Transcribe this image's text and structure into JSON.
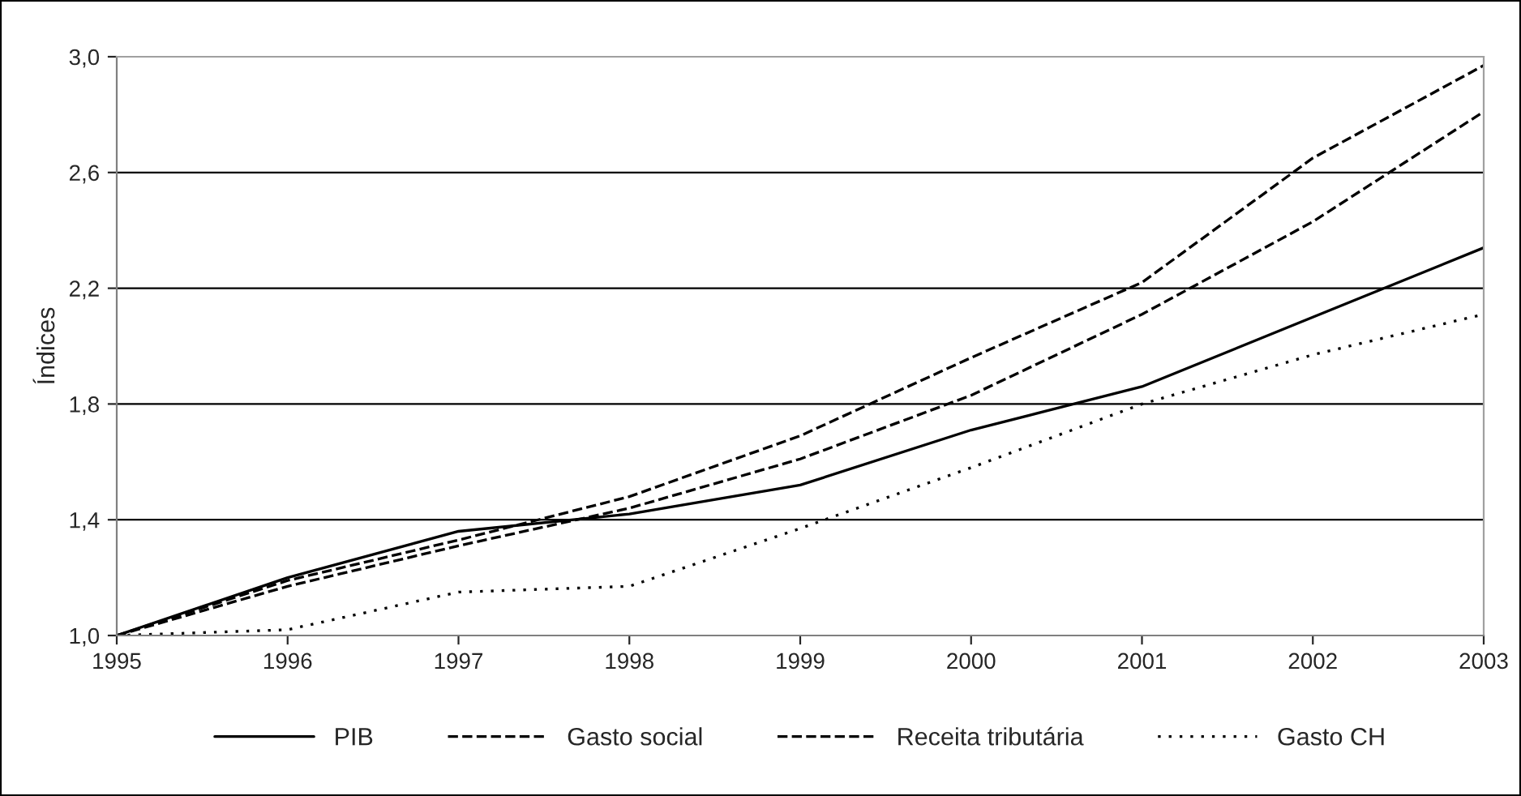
{
  "chart_data": {
    "type": "line",
    "ylabel": "Índices",
    "categories": [
      "1995",
      "1996",
      "1997",
      "1998",
      "1999",
      "2000",
      "2001",
      "2002",
      "2003"
    ],
    "series": [
      {
        "name": "PIB",
        "color": "#000000",
        "line_style": "solid",
        "values": [
          1.0,
          1.2,
          1.36,
          1.42,
          1.52,
          1.71,
          1.86,
          2.1,
          2.34
        ]
      },
      {
        "name": "Gasto social",
        "color": "#000000",
        "line_style": "dashed",
        "values": [
          1.0,
          1.19,
          1.33,
          1.48,
          1.69,
          1.96,
          2.22,
          2.65,
          2.97
        ]
      },
      {
        "name": "Receita tributária",
        "color": "#000000",
        "line_style": "dashed",
        "values": [
          1.0,
          1.17,
          1.31,
          1.44,
          1.61,
          1.83,
          2.11,
          2.43,
          2.81
        ]
      },
      {
        "name": "Gasto CH",
        "color": "#000000",
        "line_style": "dotted",
        "values": [
          1.0,
          1.02,
          1.15,
          1.17,
          1.37,
          1.58,
          1.8,
          1.97,
          2.11
        ]
      }
    ],
    "ylim": [
      1.0,
      3.0
    ],
    "yticks": [
      {
        "value": 1.0,
        "label": "1,0"
      },
      {
        "value": 1.4,
        "label": "1,4"
      },
      {
        "value": 1.8,
        "label": "1,8"
      },
      {
        "value": 2.2,
        "label": "2,2"
      },
      {
        "value": 2.6,
        "label": "2,6"
      },
      {
        "value": 3.0,
        "label": "3,0"
      }
    ],
    "grid": "y",
    "legend": "bottom",
    "marker": "none"
  }
}
